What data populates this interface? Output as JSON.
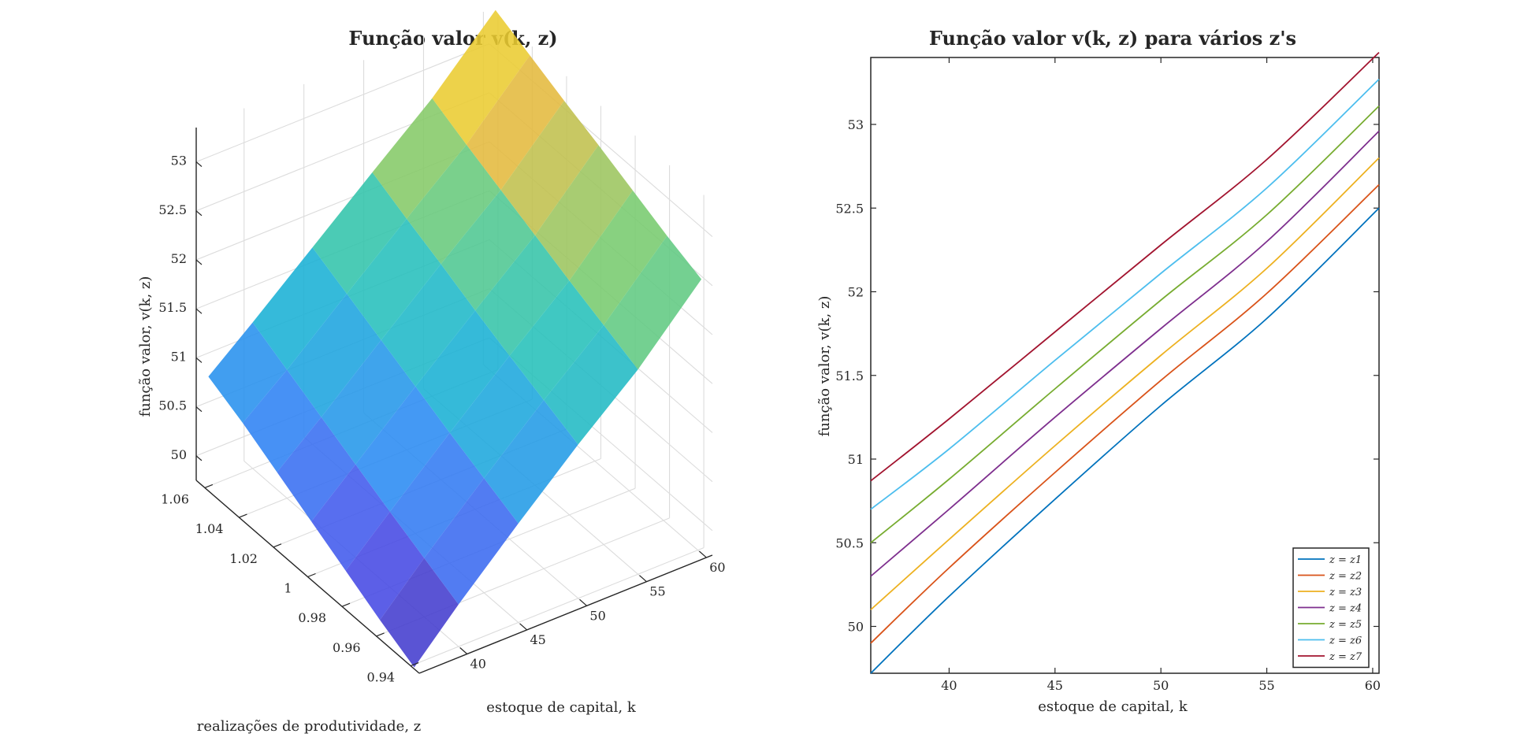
{
  "chart_data": [
    {
      "type": "surface",
      "title": "Função valor v(k, z)",
      "xlabel": "estoque de capital, k",
      "ylabel": "realizações de produtividade, z",
      "zlabel": "função valor, v(k, z)",
      "x_ticks": [
        "40",
        "45",
        "50",
        "55",
        "60"
      ],
      "y_ticks": [
        "0.94",
        "0.96",
        "0.98",
        "1",
        "1.02",
        "1.04",
        "1.06"
      ],
      "z_ticks": [
        "50",
        "50.5",
        "51",
        "51.5",
        "52",
        "52.5",
        "53"
      ],
      "xlim": [
        36,
        60.5
      ],
      "ylim": [
        0.935,
        1.065
      ],
      "zlim": [
        49.75,
        53.35
      ],
      "grid": true,
      "colormap": "parula",
      "z_levels": [
        0.94,
        0.96,
        0.98,
        1.0,
        1.02,
        1.04,
        1.06
      ],
      "k_values": [
        36.3,
        40,
        45,
        50,
        55,
        60.3
      ],
      "v_values": [
        [
          49.72,
          50.18,
          50.76,
          51.32,
          51.84,
          52.5
        ],
        [
          49.9,
          50.35,
          50.92,
          51.47,
          51.99,
          52.64
        ],
        [
          50.1,
          50.52,
          51.08,
          51.62,
          52.14,
          52.8
        ],
        [
          50.3,
          50.7,
          51.25,
          51.78,
          52.3,
          52.96
        ],
        [
          50.5,
          50.88,
          51.42,
          51.95,
          52.46,
          53.11
        ],
        [
          50.7,
          51.06,
          51.59,
          52.11,
          52.62,
          53.27
        ],
        [
          50.87,
          51.24,
          51.76,
          52.28,
          52.79,
          53.43
        ]
      ]
    },
    {
      "type": "line",
      "title": "Função valor v(k, z) para vários z's",
      "xlabel": "estoque de capital, k",
      "ylabel": "função valor, v(k, z)",
      "xlim": [
        36.3,
        60.3
      ],
      "ylim": [
        49.72,
        53.4
      ],
      "x_ticks": [
        "40",
        "45",
        "50",
        "55",
        "60"
      ],
      "y_ticks": [
        "50",
        "50.5",
        "51",
        "51.5",
        "52",
        "52.5",
        "53"
      ],
      "legend_position": "bottom-right",
      "x": [
        36.3,
        40,
        45,
        50,
        55,
        60.3
      ],
      "series": [
        {
          "name": "z = z1",
          "color": "#0072BD",
          "values": [
            49.72,
            50.18,
            50.76,
            51.32,
            51.84,
            52.5
          ]
        },
        {
          "name": "z = z2",
          "color": "#D95319",
          "values": [
            49.9,
            50.35,
            50.92,
            51.47,
            51.99,
            52.64
          ]
        },
        {
          "name": "z = z3",
          "color": "#EDB120",
          "values": [
            50.1,
            50.52,
            51.08,
            51.62,
            52.14,
            52.8
          ]
        },
        {
          "name": "z = z4",
          "color": "#7E2F8E",
          "values": [
            50.3,
            50.7,
            51.25,
            51.78,
            52.3,
            52.96
          ]
        },
        {
          "name": "z = z5",
          "color": "#77AC30",
          "values": [
            50.5,
            50.88,
            51.42,
            51.95,
            52.46,
            53.11
          ]
        },
        {
          "name": "z = z6",
          "color": "#4DBEEE",
          "values": [
            50.7,
            51.06,
            51.59,
            52.11,
            52.62,
            53.27
          ]
        },
        {
          "name": "z = z7",
          "color": "#A2142F",
          "values": [
            50.87,
            51.24,
            51.76,
            52.28,
            52.79,
            53.43
          ]
        }
      ]
    }
  ]
}
